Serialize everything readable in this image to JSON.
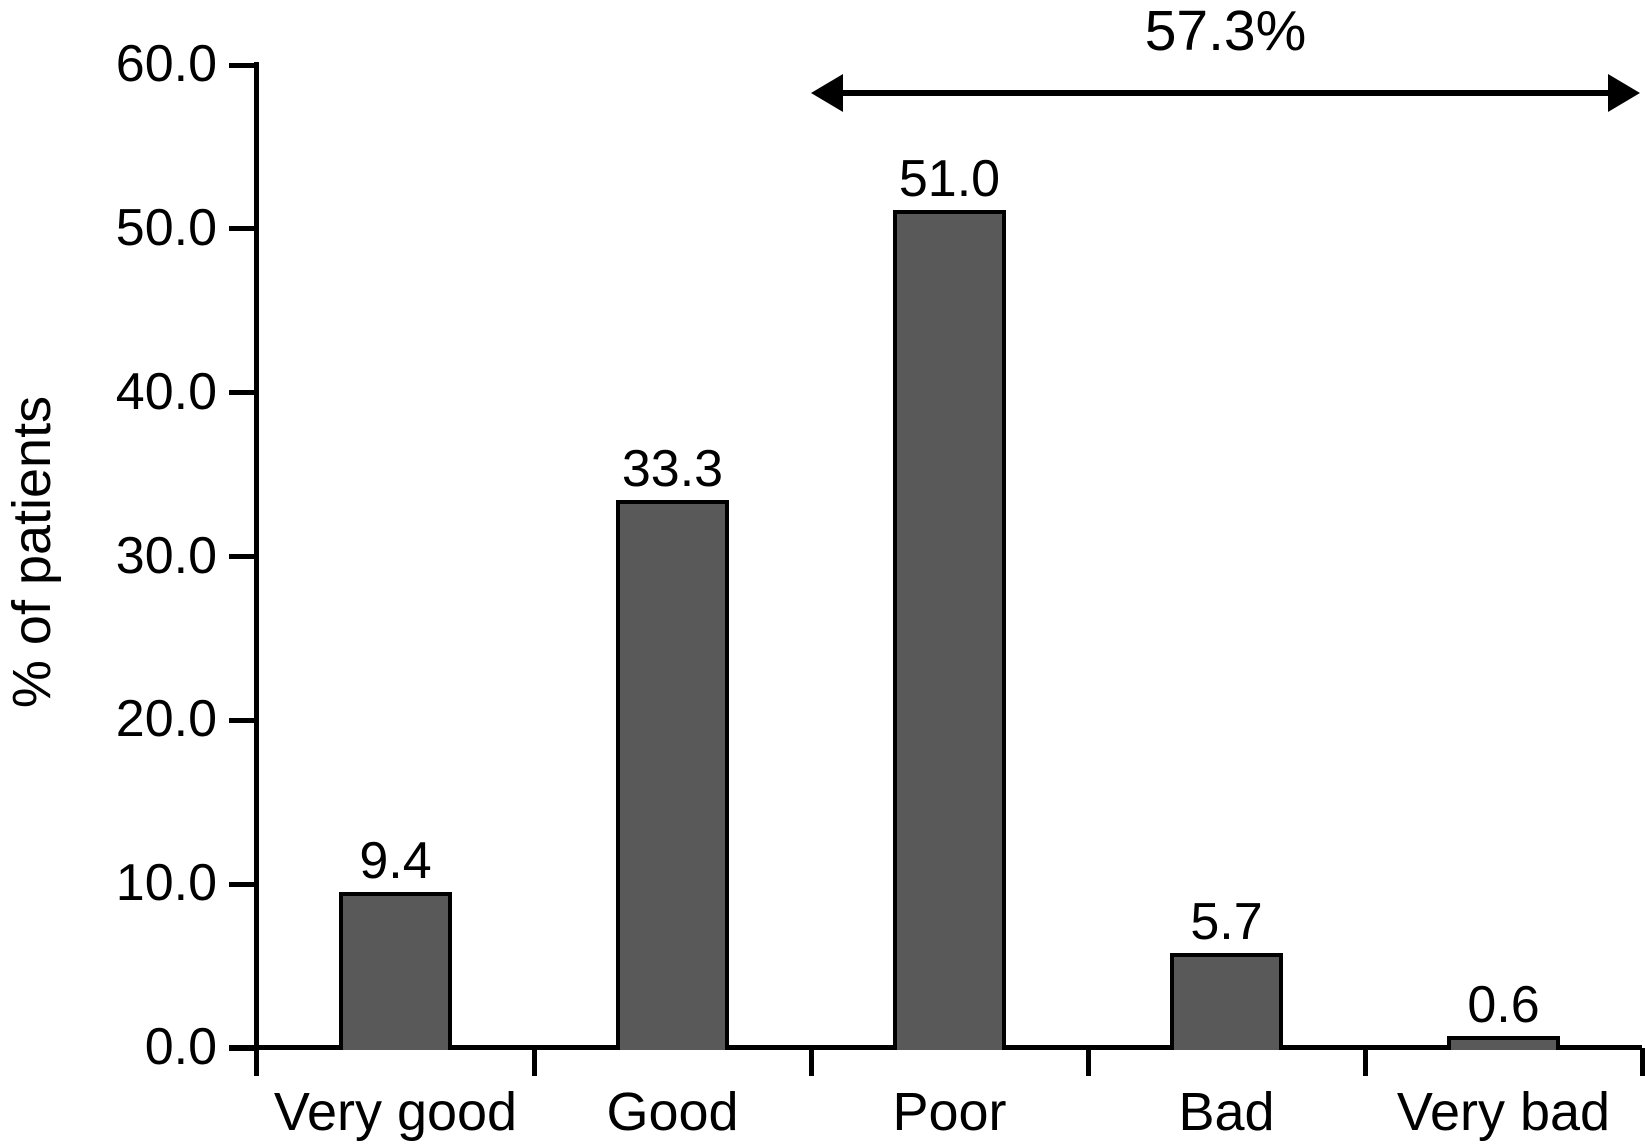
{
  "chart_data": {
    "type": "bar",
    "title": "",
    "ylabel": "% of patients",
    "xlabel": "",
    "categories": [
      "Very good",
      "Good",
      "Poor",
      "Bad",
      "Very bad"
    ],
    "values": [
      9.4,
      33.3,
      51.0,
      5.7,
      0.6
    ],
    "bar_value_labels": [
      "9.4",
      "33.3",
      "51.0",
      "5.7",
      "0.6"
    ],
    "ylim": [
      0,
      60
    ],
    "yticks": [
      0,
      10,
      20,
      30,
      40,
      50,
      60
    ],
    "ytick_labels": [
      "0.0",
      "10.0",
      "20.0",
      "30.0",
      "40.0",
      "50.0",
      "60.0"
    ],
    "grid": false,
    "legend": "none",
    "bar_color": "#595959",
    "bar_border_color": "#000000",
    "background_color": "#ffffff",
    "text_color": "#000000",
    "annotation": {
      "label": "57.3%",
      "arrow": "double-headed",
      "spans_from_category": "Poor",
      "spans_to_category": "Very bad"
    }
  }
}
